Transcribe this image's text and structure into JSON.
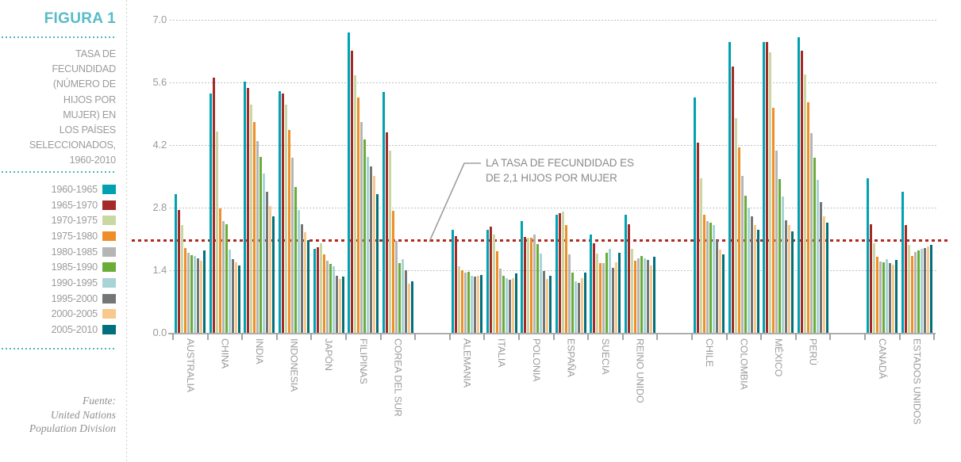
{
  "figure": {
    "label": "FIGURA 1",
    "description": "TASA DE\nFECUNDIDAD\n(NÚMERO DE\nHIJOS POR\nMUJER) EN\nLOS PAÍSES\nSELECCIONADOS,\n1960-2010",
    "source": "Fuente:\nUnited Nations\nPopulation Division"
  },
  "annotation": {
    "text": "LA TASA DE FECUNDIDAD ES\nDE 2,1 HIJOS POR MUJER"
  },
  "colors": {
    "accent_teal": "#58bbc6",
    "reference_line_red": "#b2281e",
    "grid_gray": "#c0bfbf",
    "text_gray": "#9b9b9b"
  },
  "chart_data": {
    "type": "bar",
    "title": "Tasa de fecundidad (número de hijos por mujer) en los países seleccionados, 1960-2010",
    "ylim": [
      0,
      7.0
    ],
    "yticks": [
      "0.0",
      "1.4",
      "2.8",
      "4.2",
      "5.6",
      "7.0"
    ],
    "grid": true,
    "legend_position": "left",
    "reference_line": {
      "value": 2.1,
      "label": "LA TASA DE FECUNDIDAD ES DE 2,1 HIJOS POR MUJER"
    },
    "periods": [
      {
        "name": "1960-1965",
        "color": "#00a1b0"
      },
      {
        "name": "1965-1970",
        "color": "#a42a28"
      },
      {
        "name": "1970-1975",
        "color": "#c9d8a3"
      },
      {
        "name": "1975-1980",
        "color": "#ef8e29"
      },
      {
        "name": "1980-1985",
        "color": "#b4b6b5"
      },
      {
        "name": "1985-1990",
        "color": "#69ac38"
      },
      {
        "name": "1990-1995",
        "color": "#a9d4d6"
      },
      {
        "name": "1995-2000",
        "color": "#747676"
      },
      {
        "name": "2000-2005",
        "color": "#f8c88c"
      },
      {
        "name": "2005-2010",
        "color": "#00707f"
      }
    ],
    "countries": [
      {
        "name": "AUSTRALIA",
        "values": [
          3.1,
          2.75,
          2.4,
          1.9,
          1.78,
          1.74,
          1.72,
          1.67,
          1.62,
          1.84
        ],
        "gap_after": false
      },
      {
        "name": "CHINA",
        "values": [
          5.35,
          5.7,
          4.5,
          2.78,
          2.5,
          2.42,
          1.86,
          1.65,
          1.57,
          1.5
        ],
        "gap_after": false
      },
      {
        "name": "INDIA",
        "values": [
          5.62,
          5.47,
          5.1,
          4.7,
          4.28,
          3.93,
          3.56,
          3.16,
          2.83,
          2.6
        ],
        "gap_after": false
      },
      {
        "name": "INDONESIA",
        "values": [
          5.4,
          5.35,
          5.1,
          4.53,
          3.92,
          3.25,
          2.75,
          2.42,
          2.25,
          2.07
        ],
        "gap_after": false
      },
      {
        "name": "JAPÓN",
        "values": [
          1.87,
          1.92,
          2.0,
          1.76,
          1.62,
          1.54,
          1.48,
          1.28,
          1.21,
          1.26
        ],
        "gap_after": false
      },
      {
        "name": "FILIPINAS",
        "values": [
          6.7,
          6.3,
          5.75,
          5.25,
          4.7,
          4.32,
          3.93,
          3.72,
          3.5,
          3.1
        ],
        "gap_after": false
      },
      {
        "name": "COREA DEL SUR",
        "values": [
          5.38,
          4.47,
          4.07,
          2.72,
          2.05,
          1.55,
          1.65,
          1.4,
          1.1,
          1.16
        ],
        "gap_after": true
      },
      {
        "name": "ALEMANIA",
        "values": [
          2.3,
          2.16,
          1.48,
          1.4,
          1.35,
          1.36,
          1.28,
          1.25,
          1.27,
          1.3
        ],
        "gap_after": false
      },
      {
        "name": "ITALIA",
        "values": [
          2.3,
          2.37,
          2.2,
          1.82,
          1.43,
          1.28,
          1.22,
          1.18,
          1.22,
          1.32
        ],
        "gap_after": false
      },
      {
        "name": "POLONIA",
        "values": [
          2.5,
          2.15,
          2.13,
          2.13,
          2.19,
          1.98,
          1.77,
          1.38,
          1.2,
          1.27
        ],
        "gap_after": false
      },
      {
        "name": "ESPAÑA",
        "values": [
          2.64,
          2.67,
          2.7,
          2.4,
          1.75,
          1.34,
          1.15,
          1.12,
          1.22,
          1.35
        ],
        "gap_after": false
      },
      {
        "name": "SUECIA",
        "values": [
          2.2,
          2.0,
          1.77,
          1.55,
          1.56,
          1.78,
          1.88,
          1.45,
          1.57,
          1.78
        ],
        "gap_after": false
      },
      {
        "name": "REINO UNIDO",
        "values": [
          2.63,
          2.42,
          1.88,
          1.62,
          1.67,
          1.71,
          1.67,
          1.63,
          1.5,
          1.7
        ],
        "gap_after": true
      },
      {
        "name": "CHILE",
        "values": [
          5.25,
          4.25,
          3.45,
          2.63,
          2.5,
          2.46,
          2.4,
          2.07,
          1.86,
          1.75
        ],
        "gap_after": false
      },
      {
        "name": "COLOMBIA",
        "values": [
          6.5,
          5.95,
          4.8,
          4.14,
          3.5,
          3.07,
          2.8,
          2.6,
          2.4,
          2.3
        ],
        "gap_after": false
      },
      {
        "name": "MÉXICO",
        "values": [
          6.5,
          6.5,
          6.27,
          5.03,
          4.07,
          3.44,
          3.05,
          2.51,
          2.4,
          2.26
        ],
        "gap_after": false
      },
      {
        "name": "PERÚ",
        "values": [
          6.6,
          6.3,
          5.77,
          5.15,
          4.46,
          3.92,
          3.41,
          2.93,
          2.6,
          2.46
        ],
        "gap_after": true
      },
      {
        "name": "CANADÁ",
        "values": [
          3.45,
          2.42,
          2.0,
          1.7,
          1.6,
          1.57,
          1.65,
          1.55,
          1.52,
          1.63
        ],
        "gap_after": false
      },
      {
        "name": "ESTADOS UNIDOS",
        "values": [
          3.15,
          2.4,
          1.96,
          1.72,
          1.8,
          1.84,
          1.88,
          1.9,
          1.93,
          1.96
        ],
        "gap_after": false
      }
    ]
  }
}
